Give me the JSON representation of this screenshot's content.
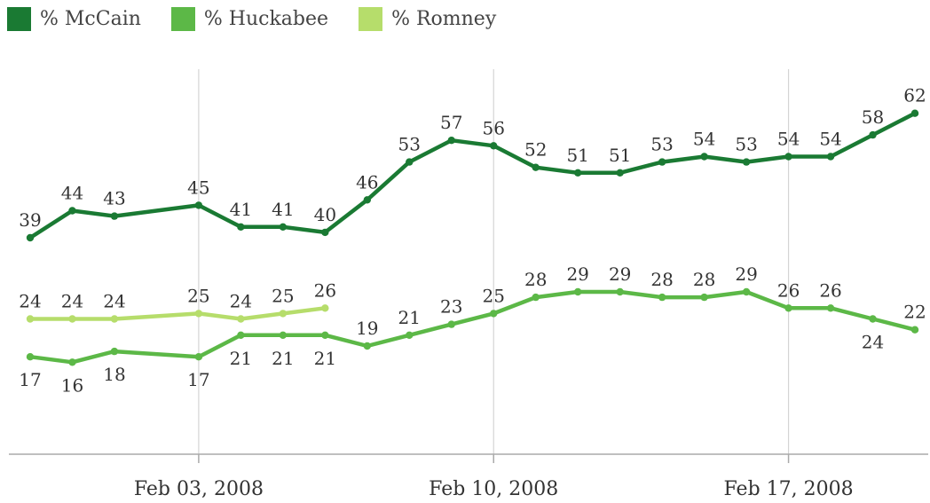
{
  "chart_data": {
    "type": "line",
    "title": "",
    "xlabel": "",
    "ylabel": "",
    "x_tick_labels": [
      "Feb 03, 2008",
      "Feb 10, 2008",
      "Feb 17, 2008"
    ],
    "x_tick_dates": [
      "2008-02-03",
      "2008-02-10",
      "2008-02-17"
    ],
    "x": [
      "2008-01-30",
      "2008-01-31",
      "2008-02-01",
      "2008-02-03",
      "2008-02-04",
      "2008-02-05",
      "2008-02-06",
      "2008-02-07",
      "2008-02-08",
      "2008-02-09",
      "2008-02-10",
      "2008-02-11",
      "2008-02-12",
      "2008-02-13",
      "2008-02-14",
      "2008-02-15",
      "2008-02-16",
      "2008-02-17",
      "2008-02-18",
      "2008-02-19",
      "2008-02-20"
    ],
    "grid": "vertical",
    "legend_position": "top-left",
    "series": [
      {
        "name": "% McCain",
        "color": "#1a7a33",
        "values": [
          39,
          44,
          43,
          45,
          41,
          41,
          40,
          46,
          53,
          57,
          56,
          52,
          51,
          51,
          53,
          54,
          53,
          54,
          54,
          58,
          62
        ]
      },
      {
        "name": "% Huckabee",
        "color": "#5cb847",
        "values": [
          17,
          16,
          18,
          17,
          21,
          21,
          21,
          19,
          21,
          23,
          25,
          28,
          29,
          29,
          28,
          28,
          29,
          26,
          26,
          24,
          22
        ]
      },
      {
        "name": "% Romney",
        "color": "#b6dd6b",
        "values": [
          24,
          24,
          24,
          25,
          24,
          25,
          26,
          null,
          null,
          null,
          null,
          null,
          null,
          null,
          null,
          null,
          null,
          null,
          null,
          null,
          null
        ]
      }
    ]
  }
}
